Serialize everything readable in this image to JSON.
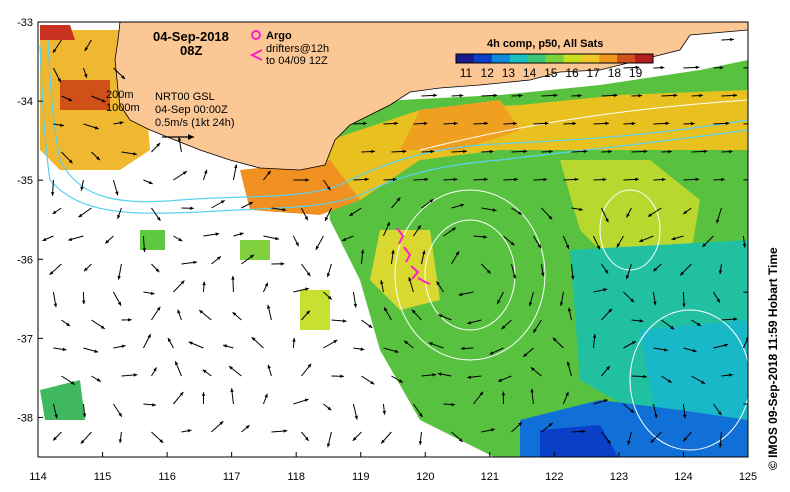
{
  "title": {
    "date": "04-Sep-2018",
    "time": "08Z"
  },
  "legend": {
    "argo_label": "Argo",
    "drifters_label": "drifters@12h",
    "drifters_to": "to 04/09 12Z"
  },
  "colorbar": {
    "title": "4h comp, p50, All Sats",
    "ticks": [
      "11",
      "12",
      "13",
      "14",
      "15",
      "16",
      "17",
      "18",
      "19"
    ],
    "colors": [
      "#1a1a8c",
      "#0a3fc8",
      "#0f8ad8",
      "#19c0c0",
      "#38c878",
      "#7ad23c",
      "#c8e01e",
      "#f0c828",
      "#f0961e",
      "#d2501e",
      "#b41e1e"
    ]
  },
  "contours_info": {
    "depth_1": "200m",
    "depth_2": "1000m"
  },
  "currents_info": {
    "source": "NRT00 GSL",
    "date": "04-Sep 00:00Z",
    "scale": "0.5m/s (1kt 24h)"
  },
  "credit": "© IMOS 09-Sep-2018 11:59 Hobart Time",
  "axes": {
    "x_ticks": [
      "114",
      "115",
      "116",
      "117",
      "118",
      "119",
      "120",
      "121",
      "122",
      "123",
      "124",
      "125"
    ],
    "y_ticks": [
      "-33",
      "-34",
      "-35",
      "-36",
      "-37",
      "-38"
    ],
    "lon_range": [
      114,
      125
    ],
    "lat_range": [
      -38.5,
      -33
    ]
  },
  "colors": {
    "land": "#fbc795",
    "ocean": "#ffffff",
    "contour_200": "#5ad2f0",
    "contour_1000": "#5ad2f0",
    "drifter": "#ff1ec8",
    "ssh_contour": "#ffffff"
  }
}
